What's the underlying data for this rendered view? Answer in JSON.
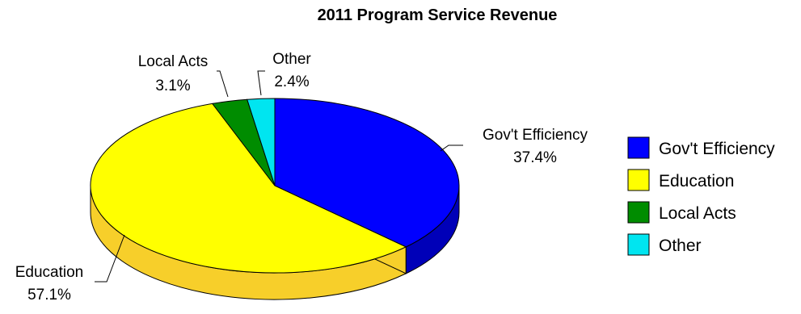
{
  "chart_data": {
    "type": "pie",
    "title": "2011 Program Service Revenue",
    "three_d": true,
    "legend_position": "right",
    "slices": [
      {
        "label": "Gov't Efficiency",
        "value": 37.4,
        "value_label": "37.4%",
        "color": "#0000FF",
        "side_color": "#0000B8"
      },
      {
        "label": "Education",
        "value": 57.1,
        "value_label": "57.1%",
        "color": "#FFFF00",
        "side_color": "#F7CF2A"
      },
      {
        "label": "Local Acts",
        "value": 3.1,
        "value_label": "3.1%",
        "color": "#008C00",
        "side_color": "#006400"
      },
      {
        "label": "Other",
        "value": 2.4,
        "value_label": "2.4%",
        "color": "#00E5F0",
        "side_color": "#00A8B0"
      }
    ]
  }
}
